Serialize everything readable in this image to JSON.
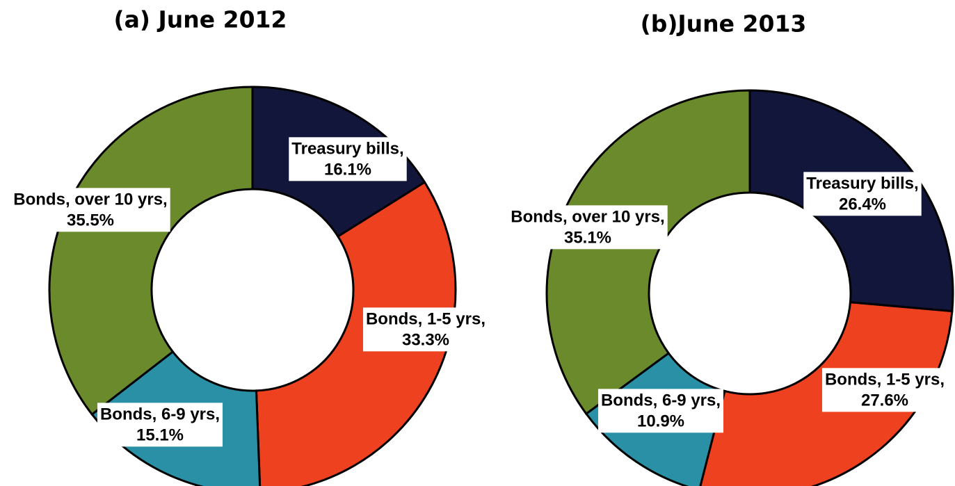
{
  "chart_data": [
    {
      "type": "donut",
      "title": "(a) June 2012",
      "categories": [
        "Treasury bills,",
        "Bonds, 1-5 yrs,",
        "Bonds, 6-9 yrs,",
        "Bonds, over 10 yrs,"
      ],
      "values": [
        16.1,
        33.3,
        15.1,
        35.5
      ],
      "value_labels": [
        "16.1%",
        "33.3%",
        "15.1%",
        "35.5%"
      ],
      "colors": [
        "#12163a",
        "#ee4120",
        "#2a90a6",
        "#6a8a2c"
      ]
    },
    {
      "type": "donut",
      "title": "(b)June 2013",
      "categories": [
        "Treasury bills,",
        "Bonds, 1-5 yrs,",
        "Bonds, 6-9 yrs,",
        "Bonds, over 10 yrs,"
      ],
      "values": [
        26.4,
        27.6,
        10.9,
        35.1
      ],
      "value_labels": [
        "26.4%",
        "27.6%",
        "10.9%",
        "35.1%"
      ],
      "colors": [
        "#12163a",
        "#ee4120",
        "#2a90a6",
        "#6a8a2c"
      ]
    }
  ]
}
